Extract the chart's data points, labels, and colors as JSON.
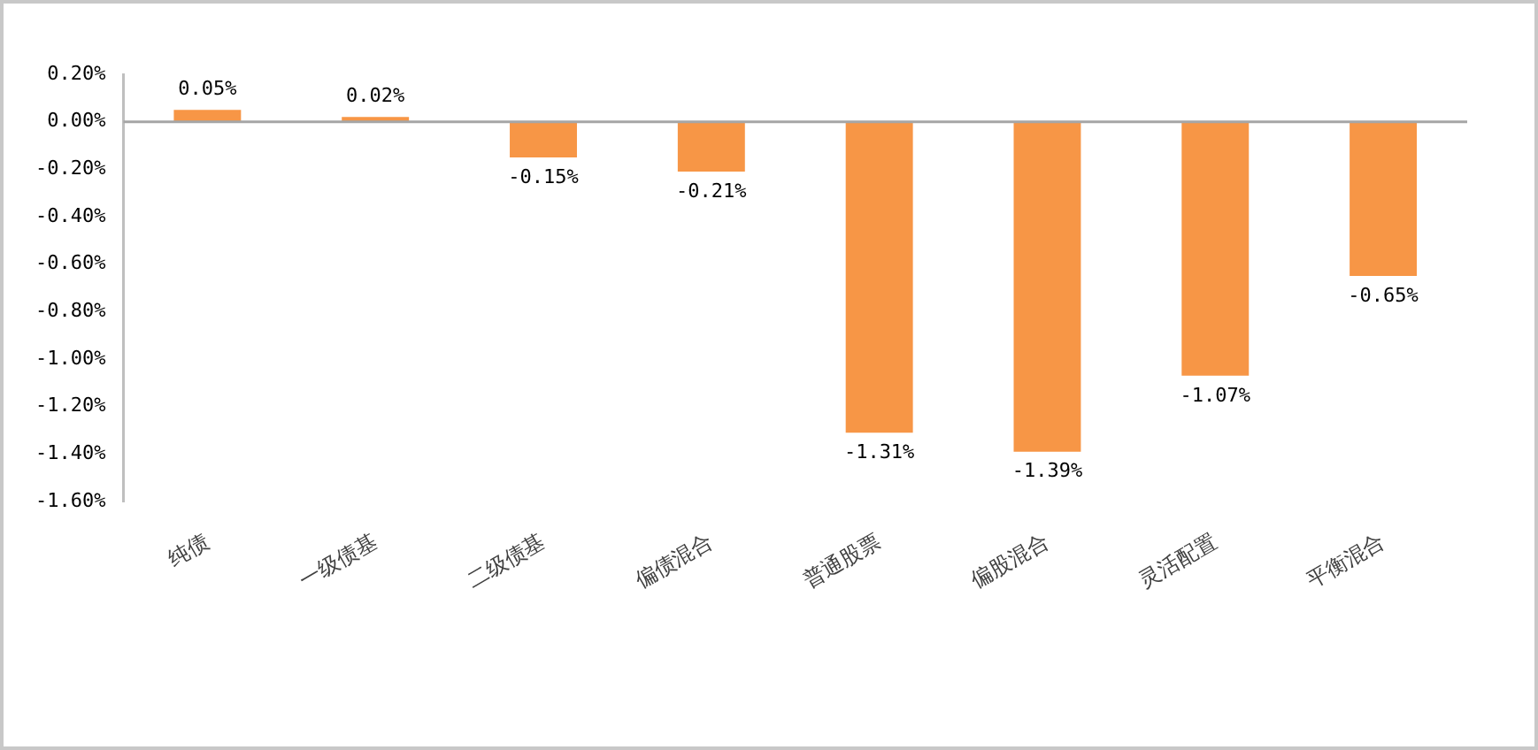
{
  "chart_data": {
    "type": "bar",
    "categories": [
      "纯债",
      "一级债基",
      "二级债基",
      "偏债混合",
      "普通股票",
      "偏股混合",
      "灵活配置",
      "平衡混合"
    ],
    "values": [
      0.05,
      0.02,
      -0.15,
      -0.21,
      -1.31,
      -1.39,
      -1.07,
      -0.65
    ],
    "value_labels": [
      "0.05%",
      "0.02%",
      "-0.15%",
      "-0.21%",
      "-1.31%",
      "-1.39%",
      "-1.07%",
      "-0.65%"
    ],
    "color": "#f79646",
    "ylim": [
      -1.6,
      0.2
    ],
    "yticks": [
      {
        "value": 0.2,
        "label": "0.20%"
      },
      {
        "value": 0,
        "label": "0.00%"
      },
      {
        "value": -0.2,
        "label": "-0.20%"
      },
      {
        "value": -0.4,
        "label": "-0.40%"
      },
      {
        "value": -0.6,
        "label": "-0.60%"
      },
      {
        "value": -0.8,
        "label": "-0.80%"
      },
      {
        "value": -1,
        "label": "-1.00%"
      },
      {
        "value": -1.2,
        "label": "-1.20%"
      },
      {
        "value": -1.4,
        "label": "-1.40%"
      },
      {
        "value": -1.6,
        "label": "-1.60%"
      }
    ],
    "legend": false
  }
}
